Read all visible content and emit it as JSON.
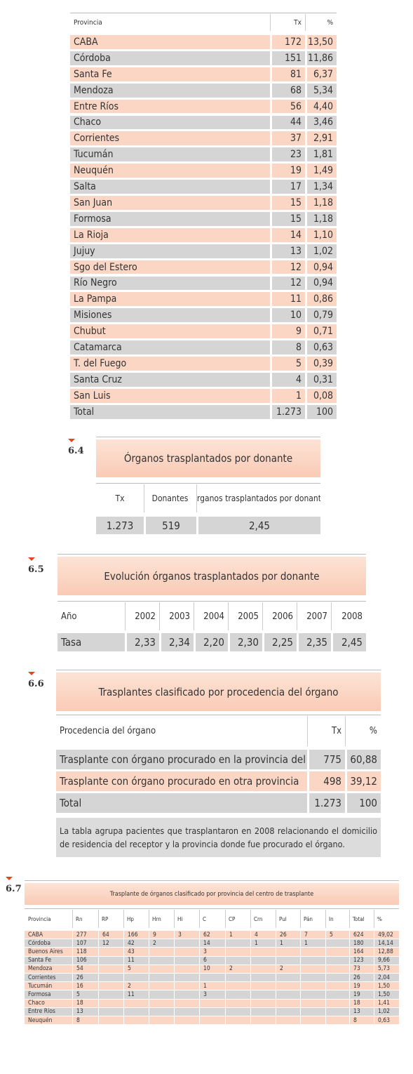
{
  "table_1": {
    "header": [
      "Provincia",
      "Tx",
      "%"
    ],
    "rows": [
      [
        "CABA",
        "172",
        "13,50"
      ],
      [
        "Córdoba",
        "151",
        "11,86"
      ],
      [
        "Santa Fe",
        "81",
        "6,37"
      ],
      [
        "Mendoza",
        "68",
        "5,34"
      ],
      [
        "Entre Ríos",
        "56",
        "4,40"
      ],
      [
        "Chaco",
        "44",
        "3,46"
      ],
      [
        "Corrientes",
        "37",
        "2,91"
      ],
      [
        "Tucumán",
        "23",
        "1,81"
      ],
      [
        "Neuquén",
        "19",
        "1,49"
      ],
      [
        "Salta",
        "17",
        "1,34"
      ],
      [
        "San Juan",
        "15",
        "1,18"
      ],
      [
        "Formosa",
        "15",
        "1,18"
      ],
      [
        "La Rioja",
        "14",
        "1,10"
      ],
      [
        "Jujuy",
        "13",
        "1,02"
      ],
      [
        "Sgo del Estero",
        "12",
        "0,94"
      ],
      [
        "Río Negro",
        "12",
        "0,94"
      ],
      [
        "La Pampa",
        "11",
        "0,86"
      ],
      [
        "Misiones",
        "10",
        "0,79"
      ],
      [
        "Chubut",
        "9",
        "0,71"
      ],
      [
        "Catamarca",
        "8",
        "0,63"
      ],
      [
        "T. del Fuego",
        "5",
        "0,39"
      ],
      [
        "Santa Cruz",
        "4",
        "0,31"
      ],
      [
        "San Luis",
        "1",
        "0,08"
      ],
      [
        "Total",
        "1.273",
        "100"
      ]
    ]
  },
  "section_6_4": {
    "number": "6.4",
    "title": "Órganos trasplantados por donante",
    "header": [
      "Tx",
      "Donantes",
      "Órganos trasplantados por donante"
    ],
    "rows": [
      [
        "1.273",
        "519",
        "2,45"
      ]
    ]
  },
  "section_6_5": {
    "number": "6.5",
    "title": "Evolución órganos trasplantados por donante",
    "header": [
      "Año",
      "2002",
      "2003",
      "2004",
      "2005",
      "2006",
      "2007",
      "2008"
    ],
    "rows": [
      [
        "Tasa",
        "2,33",
        "2,34",
        "2,20",
        "2,30",
        "2,25",
        "2,35",
        "2,45"
      ]
    ]
  },
  "section_6_6": {
    "number": "6.6",
    "title": "Trasplantes clasificado por procedencia del órgano",
    "header": [
      "Procedencia del órgano",
      "Tx",
      "%"
    ],
    "rows": [
      [
        "Trasplante con órgano procurado en la provincia del receptor",
        "775",
        "60,88"
      ],
      [
        "Trasplante con órgano procurado en otra provincia",
        "498",
        "39,12"
      ],
      [
        "Total",
        "1.273",
        "100"
      ]
    ],
    "note": "La tabla agrupa pacientes que trasplantaron en 2008 relacionando el domicilio de residencia del receptor y la provincia donde fue procurado el órgano."
  },
  "section_6_7": {
    "number": "6.7",
    "title": "Trasplante de órganos clasificado por provincia del centro de trasplante",
    "header": [
      "Provincia",
      "Rn",
      "RP",
      "Hp",
      "Hrn",
      "Hi",
      "C",
      "CP",
      "Crn",
      "Pul",
      "Pán",
      "In",
      "Total",
      "%"
    ],
    "rows": [
      [
        "CABA",
        "277",
        "64",
        "166",
        "9",
        "3",
        "62",
        "1",
        "4",
        "26",
        "7",
        "5",
        "624",
        "49,02"
      ],
      [
        "Córdoba",
        "107",
        "12",
        "42",
        "2",
        null,
        "14",
        null,
        "1",
        "1",
        "1",
        null,
        "180",
        "14,14"
      ],
      [
        "Buenos Aires",
        "118",
        null,
        "43",
        null,
        null,
        "3",
        null,
        null,
        null,
        null,
        null,
        "164",
        "12,88"
      ],
      [
        "Santa Fe",
        "106",
        null,
        "11",
        null,
        null,
        "6",
        null,
        null,
        null,
        null,
        null,
        "123",
        "9,66"
      ],
      [
        "Mendoza",
        "54",
        null,
        "5",
        null,
        null,
        "10",
        "2",
        null,
        "2",
        null,
        null,
        "73",
        "5,73"
      ],
      [
        "Corrientes",
        "26",
        null,
        null,
        null,
        null,
        null,
        null,
        null,
        null,
        null,
        null,
        "26",
        "2,04"
      ],
      [
        "Tucumán",
        "16",
        null,
        "2",
        null,
        null,
        "1",
        null,
        null,
        null,
        null,
        null,
        "19",
        "1,50"
      ],
      [
        "Formosa",
        "5",
        null,
        "11",
        null,
        null,
        "3",
        null,
        null,
        null,
        null,
        null,
        "19",
        "1,50"
      ],
      [
        "Chaco",
        "18",
        null,
        null,
        null,
        null,
        null,
        null,
        null,
        null,
        null,
        null,
        "18",
        "1,41"
      ],
      [
        "Entre Ríos",
        "13",
        null,
        null,
        null,
        null,
        null,
        null,
        null,
        null,
        null,
        null,
        "13",
        "1,02"
      ],
      [
        "Neuquén",
        "8",
        null,
        null,
        null,
        null,
        null,
        null,
        null,
        null,
        null,
        null,
        "8",
        "0,63"
      ]
    ]
  }
}
